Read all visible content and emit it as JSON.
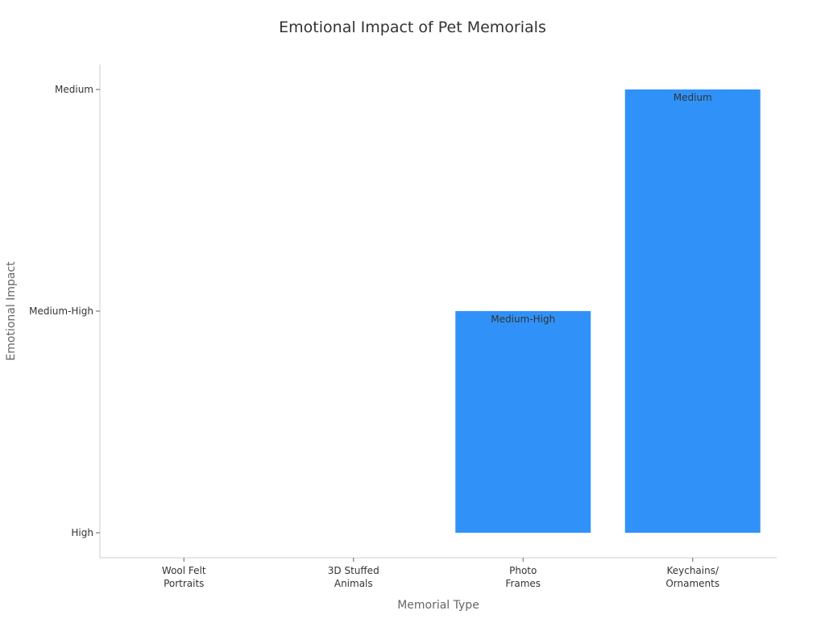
{
  "chart_data": {
    "type": "bar",
    "title": "Emotional Impact of Pet Memorials",
    "xlabel": "Memorial Type",
    "ylabel": "Emotional Impact",
    "categories": [
      [
        "Wool Felt",
        "Portraits"
      ],
      [
        "3D Stuffed",
        "Animals"
      ],
      [
        "Photo",
        "Frames"
      ],
      [
        "Keychains/",
        "Ornaments"
      ]
    ],
    "y_categories": [
      "High",
      "Medium-High",
      "Medium"
    ],
    "values": [
      "High",
      "High",
      "Medium-High",
      "Medium"
    ],
    "bar_color": "#3092f8",
    "grid": false,
    "legend": "none"
  }
}
